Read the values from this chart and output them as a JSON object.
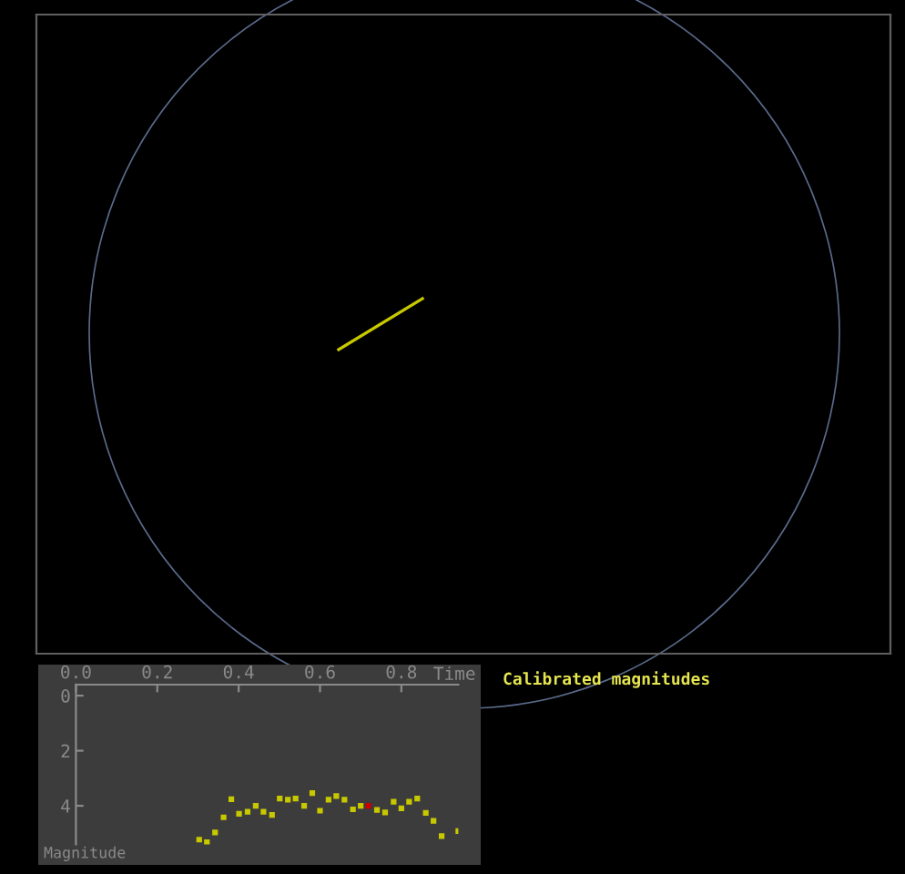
{
  "chart_data": {
    "type": "scatter",
    "xlabel": "Time",
    "ylabel": "Magnitude",
    "annotations": [
      "Calibrated magnitudes"
    ],
    "x": [
      0.303,
      0.322,
      0.342,
      0.363,
      0.382,
      0.401,
      0.422,
      0.442,
      0.461,
      0.482,
      0.501,
      0.521,
      0.54,
      0.561,
      0.581,
      0.6,
      0.621,
      0.64,
      0.66,
      0.681,
      0.7,
      0.719,
      0.74,
      0.76,
      0.781,
      0.8,
      0.819,
      0.839,
      0.86,
      0.879,
      0.899,
      0.94
    ],
    "values": [
      5.23,
      5.32,
      4.97,
      4.42,
      3.76,
      4.29,
      4.22,
      4.0,
      4.22,
      4.33,
      3.74,
      3.78,
      3.74,
      4.0,
      3.54,
      4.18,
      3.78,
      3.65,
      3.78,
      4.13,
      4.0,
      4.0,
      4.15,
      4.24,
      3.85,
      4.09,
      3.85,
      3.74,
      4.26,
      4.55,
      5.1,
      4.92
    ],
    "colors": [
      "#c8c800",
      "#c8c800",
      "#c8c800",
      "#c8c800",
      "#c8c800",
      "#c8c800",
      "#c8c800",
      "#c8c800",
      "#c8c800",
      "#c8c800",
      "#c8c800",
      "#c8c800",
      "#c8c800",
      "#c8c800",
      "#c8c800",
      "#c8c800",
      "#c8c800",
      "#c8c800",
      "#c8c800",
      "#c8c800",
      "#c8c800",
      "#c80000",
      "#c8c800",
      "#c8c800",
      "#c8c800",
      "#c8c800",
      "#c8c800",
      "#c8c800",
      "#c8c800",
      "#c8c800",
      "#c8c800",
      "#c8c800"
    ],
    "xlim": [
      0,
      0.94
    ],
    "ylim": [
      5.4,
      -0.4
    ],
    "xticks": [
      {
        "value": 0,
        "label": "0.0"
      },
      {
        "value": 0.2,
        "label": "0.2"
      },
      {
        "value": 0.4,
        "label": "0.4"
      },
      {
        "value": 0.6,
        "label": "0.6"
      },
      {
        "value": 0.8,
        "label": "0.8"
      }
    ],
    "yticks": [
      0,
      2,
      4
    ],
    "marker": "square",
    "grid": false,
    "legend": false
  }
}
